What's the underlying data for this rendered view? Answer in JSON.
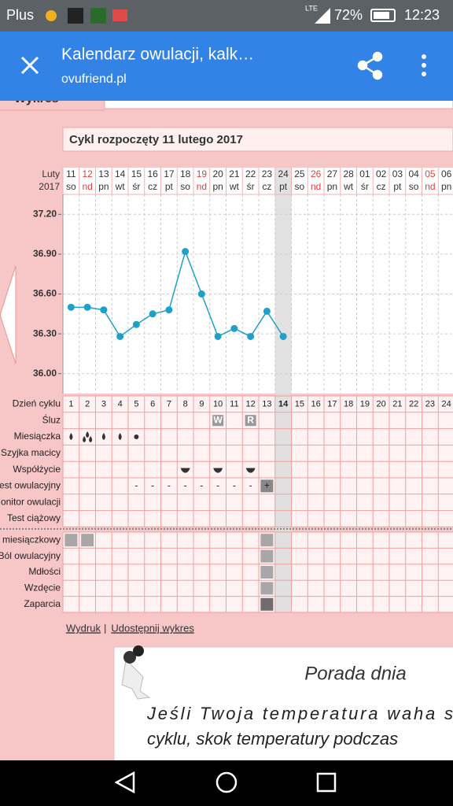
{
  "status_bar": {
    "carrier": "Plus",
    "network": "LTE",
    "battery": "72%",
    "time": "12:23"
  },
  "toolbar": {
    "title": "Kalendarz owulacji, kalk…",
    "url": "ovufriend.pl"
  },
  "tab": "Wykres",
  "cycle_title": "Cykl rozpoczęty 11 lutego 2017",
  "chart_data": {
    "type": "line",
    "month": "Luty",
    "year": "2017",
    "categories": [
      "11",
      "12",
      "13",
      "14",
      "15",
      "16",
      "17",
      "18",
      "19",
      "20",
      "21",
      "22",
      "23",
      "24",
      "25",
      "26",
      "27",
      "28",
      "01",
      "02",
      "03",
      "04",
      "05",
      "06"
    ],
    "weekdays": [
      "so",
      "nd",
      "pn",
      "wt",
      "śr",
      "cz",
      "pt",
      "so",
      "nd",
      "pn",
      "wt",
      "śr",
      "cz",
      "pt",
      "so",
      "nd",
      "pn",
      "wt",
      "śr",
      "cz",
      "pt",
      "so",
      "nd",
      "pn"
    ],
    "weekday_colors": {
      "nd": "#e04040"
    },
    "series": [
      {
        "color": "#1ea1c9",
        "values": [
          36.5,
          36.5,
          36.48,
          36.28,
          36.37,
          36.45,
          36.48,
          36.92,
          36.6,
          36.28,
          36.34,
          36.28,
          36.47,
          36.28,
          null,
          null,
          null,
          null,
          null,
          null,
          null,
          null,
          null,
          null
        ]
      }
    ],
    "ylim": [
      35.85,
      37.35
    ],
    "yticks": [
      {
        "value": 36.0,
        "label": "36.00"
      },
      {
        "value": 36.3,
        "label": "36.30"
      },
      {
        "value": 36.6,
        "label": "36.60"
      },
      {
        "value": 36.9,
        "label": "36.90"
      },
      {
        "value": 37.2,
        "label": "37.20"
      }
    ],
    "grid": true
  },
  "table": {
    "rows": [
      {
        "label": "Dzień cyklu",
        "cells": [
          1,
          2,
          3,
          4,
          5,
          6,
          7,
          8,
          9,
          10,
          11,
          12,
          13,
          14,
          15,
          16,
          17,
          18,
          19,
          20,
          21,
          22,
          23,
          24
        ]
      },
      {
        "label": "Śluz",
        "cells": [
          null,
          null,
          null,
          null,
          null,
          null,
          null,
          null,
          null,
          "W",
          null,
          "R",
          null,
          null,
          null,
          null,
          null,
          null,
          null,
          null,
          null,
          null,
          null,
          null
        ]
      },
      {
        "label": "Miesiączka",
        "cells": null
      },
      {
        "label": "Szyjka macicy",
        "cells": null
      },
      {
        "label": "Współżycie",
        "cells": null
      },
      {
        "label": "Test owulacyjny",
        "cells": [
          null,
          null,
          null,
          null,
          "-",
          "-",
          "-",
          "-",
          "-",
          "-",
          "-",
          "-",
          "+",
          null,
          null,
          null,
          null,
          null,
          null,
          null,
          null,
          null,
          null,
          null
        ]
      },
      {
        "label": "Monitor owulacji",
        "cells": null
      },
      {
        "label": "Test ciążowy",
        "cells": null
      },
      {
        "label": "Ból miesiączkowy",
        "cells": null
      },
      {
        "label": "Ból owulacyjny",
        "cells": null
      },
      {
        "label": "Mdłości",
        "cells": null
      },
      {
        "label": "Wzdęcie",
        "cells": null
      },
      {
        "label": "Zaparcia",
        "cells": null
      }
    ]
  },
  "links": {
    "print": "Wydruk",
    "separator": "|",
    "share": "Udostępnij wykres"
  },
  "tip": {
    "title": "Porada dnia",
    "lines": [
      "Jeśli Twoja temperatura waha s",
      "cyklu, skok temperatury podczas"
    ]
  }
}
